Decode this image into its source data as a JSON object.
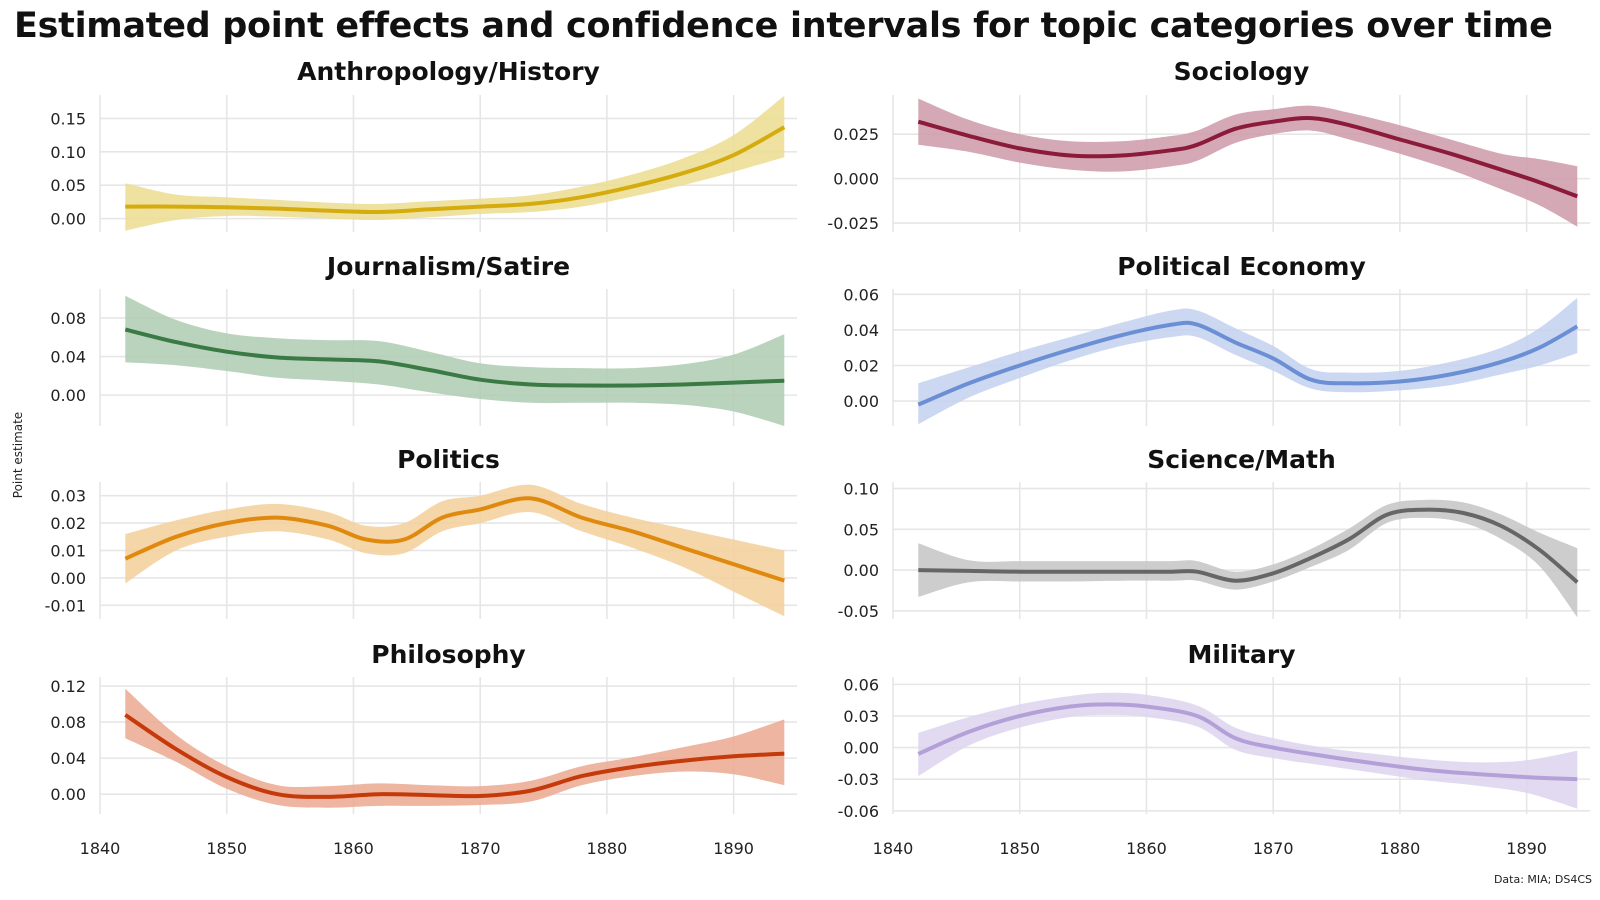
{
  "title": "Estimated point effects and confidence intervals for topic categories over time",
  "ylabel": "Point estimate",
  "caption": "Data: MIA; DS4CS",
  "chart_data": [
    {
      "type": "line",
      "title": "Anthropology/History",
      "color": "#d4ac0d",
      "band_color": "#ecdc8e",
      "ylim": [
        -0.02,
        0.185
      ],
      "yticks": [
        0.0,
        0.05,
        0.1,
        0.15
      ],
      "ytick_labels": [
        "0.00",
        "0.05",
        "0.10",
        "0.15"
      ],
      "xlim": [
        1840,
        1895
      ],
      "xticks": [
        1840,
        1850,
        1860,
        1870,
        1880,
        1890
      ],
      "xtick_labels": [
        "1840",
        "1850",
        "1860",
        "1870",
        "1880",
        "1890"
      ],
      "show_xlabels": false,
      "x": [
        1842,
        1846,
        1850,
        1854,
        1858,
        1862,
        1866,
        1870,
        1874,
        1878,
        1882,
        1886,
        1890,
        1894
      ],
      "y": [
        0.018,
        0.018,
        0.017,
        0.015,
        0.012,
        0.01,
        0.014,
        0.018,
        0.022,
        0.032,
        0.048,
        0.068,
        0.095,
        0.137
      ],
      "lower": [
        -0.018,
        -0.002,
        0.004,
        0.003,
        0.0,
        -0.002,
        0.002,
        0.007,
        0.01,
        0.018,
        0.033,
        0.05,
        0.07,
        0.092
      ],
      "upper": [
        0.053,
        0.036,
        0.032,
        0.028,
        0.024,
        0.022,
        0.026,
        0.03,
        0.035,
        0.048,
        0.066,
        0.09,
        0.125,
        0.184
      ]
    },
    {
      "type": "line",
      "title": "Sociology",
      "color": "#8c1a3a",
      "band_color": "#cc9aa8",
      "ylim": [
        -0.03,
        0.047
      ],
      "yticks": [
        -0.025,
        0.0,
        0.025
      ],
      "ytick_labels": [
        "-0.025",
        "0.000",
        "0.025"
      ],
      "xlim": [
        1840,
        1895
      ],
      "xticks": [
        1840,
        1850,
        1860,
        1870,
        1880,
        1890
      ],
      "xtick_labels": [
        "1840",
        "1850",
        "1860",
        "1870",
        "1880",
        "1890"
      ],
      "show_xlabels": false,
      "x": [
        1842,
        1846,
        1850,
        1854,
        1858,
        1862,
        1864,
        1867,
        1870,
        1873,
        1876,
        1880,
        1884,
        1888,
        1891,
        1894
      ],
      "y": [
        0.032,
        0.024,
        0.017,
        0.013,
        0.013,
        0.016,
        0.019,
        0.028,
        0.032,
        0.034,
        0.03,
        0.022,
        0.014,
        0.005,
        -0.002,
        -0.01
      ],
      "lower": [
        0.019,
        0.015,
        0.009,
        0.005,
        0.004,
        0.007,
        0.01,
        0.02,
        0.025,
        0.027,
        0.022,
        0.014,
        0.005,
        -0.006,
        -0.015,
        -0.027
      ],
      "upper": [
        0.045,
        0.033,
        0.025,
        0.021,
        0.021,
        0.024,
        0.027,
        0.036,
        0.039,
        0.041,
        0.037,
        0.03,
        0.022,
        0.014,
        0.011,
        0.007
      ]
    },
    {
      "type": "line",
      "title": "Journalism/Satire",
      "color": "#3a7a45",
      "band_color": "#aecbb1",
      "ylim": [
        -0.032,
        0.11
      ],
      "yticks": [
        0.0,
        0.04,
        0.08
      ],
      "ytick_labels": [
        "0.00",
        "0.04",
        "0.08"
      ],
      "xlim": [
        1840,
        1895
      ],
      "xticks": [
        1840,
        1850,
        1860,
        1870,
        1880,
        1890
      ],
      "xtick_labels": [
        "1840",
        "1850",
        "1860",
        "1870",
        "1880",
        "1890"
      ],
      "show_xlabels": false,
      "x": [
        1842,
        1846,
        1850,
        1854,
        1858,
        1862,
        1866,
        1870,
        1874,
        1878,
        1882,
        1886,
        1890,
        1894
      ],
      "y": [
        0.068,
        0.055,
        0.045,
        0.039,
        0.037,
        0.035,
        0.026,
        0.016,
        0.011,
        0.01,
        0.01,
        0.011,
        0.013,
        0.015
      ],
      "lower": [
        0.034,
        0.031,
        0.025,
        0.018,
        0.015,
        0.011,
        0.003,
        -0.004,
        -0.008,
        -0.008,
        -0.008,
        -0.01,
        -0.017,
        -0.032
      ],
      "upper": [
        0.103,
        0.078,
        0.064,
        0.059,
        0.057,
        0.056,
        0.045,
        0.033,
        0.029,
        0.028,
        0.028,
        0.032,
        0.042,
        0.063
      ]
    },
    {
      "type": "line",
      "title": "Political Economy",
      "color": "#6a8fd4",
      "band_color": "#c3d1ee",
      "ylim": [
        -0.014,
        0.063
      ],
      "yticks": [
        0.0,
        0.02,
        0.04,
        0.06
      ],
      "ytick_labels": [
        "0.00",
        "0.02",
        "0.04",
        "0.06"
      ],
      "xlim": [
        1840,
        1895
      ],
      "xticks": [
        1840,
        1850,
        1860,
        1870,
        1880,
        1890
      ],
      "xtick_labels": [
        "1840",
        "1850",
        "1860",
        "1870",
        "1880",
        "1890"
      ],
      "show_xlabels": false,
      "x": [
        1842,
        1846,
        1850,
        1854,
        1858,
        1862,
        1864,
        1867,
        1870,
        1873,
        1876,
        1880,
        1884,
        1888,
        1891,
        1894
      ],
      "y": [
        -0.002,
        0.01,
        0.02,
        0.029,
        0.037,
        0.043,
        0.043,
        0.033,
        0.024,
        0.012,
        0.01,
        0.011,
        0.015,
        0.022,
        0.03,
        0.042
      ],
      "lower": [
        -0.013,
        0.002,
        0.013,
        0.023,
        0.031,
        0.036,
        0.036,
        0.026,
        0.017,
        0.007,
        0.005,
        0.006,
        0.009,
        0.015,
        0.02,
        0.027
      ],
      "upper": [
        0.01,
        0.019,
        0.028,
        0.036,
        0.044,
        0.051,
        0.051,
        0.041,
        0.031,
        0.018,
        0.016,
        0.017,
        0.022,
        0.03,
        0.041,
        0.058
      ]
    },
    {
      "type": "line",
      "title": "Politics",
      "color": "#e0890f",
      "band_color": "#f3cf9a",
      "ylim": [
        -0.015,
        0.035
      ],
      "yticks": [
        -0.01,
        0.0,
        0.01,
        0.02,
        0.03
      ],
      "ytick_labels": [
        "-0.01",
        "0.00",
        "0.01",
        "0.02",
        "0.03"
      ],
      "xlim": [
        1840,
        1895
      ],
      "xticks": [
        1840,
        1850,
        1860,
        1870,
        1880,
        1890
      ],
      "xtick_labels": [
        "1840",
        "1850",
        "1860",
        "1870",
        "1880",
        "1890"
      ],
      "show_xlabels": false,
      "x": [
        1842,
        1846,
        1850,
        1854,
        1858,
        1861,
        1864,
        1867,
        1870,
        1874,
        1878,
        1882,
        1886,
        1890,
        1894
      ],
      "y": [
        0.007,
        0.015,
        0.02,
        0.022,
        0.019,
        0.014,
        0.014,
        0.022,
        0.025,
        0.029,
        0.022,
        0.017,
        0.011,
        0.005,
        -0.001
      ],
      "lower": [
        -0.002,
        0.01,
        0.015,
        0.017,
        0.014,
        0.009,
        0.009,
        0.017,
        0.02,
        0.024,
        0.017,
        0.011,
        0.004,
        -0.005,
        -0.014
      ],
      "upper": [
        0.016,
        0.021,
        0.025,
        0.027,
        0.024,
        0.019,
        0.02,
        0.028,
        0.03,
        0.034,
        0.027,
        0.022,
        0.018,
        0.014,
        0.01
      ]
    },
    {
      "type": "line",
      "title": "Science/Math",
      "color": "#666666",
      "band_color": "#c4c4c4",
      "ylim": [
        -0.06,
        0.108
      ],
      "yticks": [
        -0.05,
        0.0,
        0.05,
        0.1
      ],
      "ytick_labels": [
        "-0.05",
        "0.00",
        "0.05",
        "0.10"
      ],
      "xlim": [
        1840,
        1895
      ],
      "xticks": [
        1840,
        1850,
        1860,
        1870,
        1880,
        1890
      ],
      "xtick_labels": [
        "1840",
        "1850",
        "1860",
        "1870",
        "1880",
        "1890"
      ],
      "show_xlabels": false,
      "x": [
        1842,
        1846,
        1850,
        1854,
        1858,
        1862,
        1864,
        1867,
        1870,
        1873,
        1876,
        1879,
        1882,
        1885,
        1888,
        1891,
        1894
      ],
      "y": [
        0.0,
        -0.001,
        -0.002,
        -0.002,
        -0.002,
        -0.002,
        -0.002,
        -0.013,
        -0.004,
        0.015,
        0.038,
        0.068,
        0.074,
        0.07,
        0.054,
        0.025,
        -0.015
      ],
      "lower": [
        -0.033,
        -0.015,
        -0.014,
        -0.014,
        -0.013,
        -0.013,
        -0.013,
        -0.024,
        -0.014,
        0.004,
        0.025,
        0.058,
        0.064,
        0.058,
        0.038,
        0.005,
        -0.058
      ],
      "upper": [
        0.033,
        0.012,
        0.011,
        0.011,
        0.011,
        0.011,
        0.011,
        -0.002,
        0.007,
        0.026,
        0.051,
        0.08,
        0.086,
        0.083,
        0.068,
        0.046,
        0.027
      ]
    },
    {
      "type": "line",
      "title": "Philosophy",
      "color": "#c43a0a",
      "band_color": "#eba88f",
      "ylim": [
        -0.022,
        0.13
      ],
      "yticks": [
        0.0,
        0.04,
        0.08,
        0.12
      ],
      "ytick_labels": [
        "0.00",
        "0.04",
        "0.08",
        "0.12"
      ],
      "xlim": [
        1840,
        1895
      ],
      "xticks": [
        1840,
        1850,
        1860,
        1870,
        1880,
        1890
      ],
      "xtick_labels": [
        "1840",
        "1850",
        "1860",
        "1870",
        "1880",
        "1890"
      ],
      "show_xlabels": true,
      "x": [
        1842,
        1846,
        1850,
        1854,
        1858,
        1862,
        1866,
        1870,
        1874,
        1878,
        1882,
        1886,
        1890,
        1894
      ],
      "y": [
        0.088,
        0.05,
        0.019,
        0.0,
        -0.003,
        0.0,
        -0.001,
        -0.002,
        0.004,
        0.02,
        0.03,
        0.037,
        0.042,
        0.045
      ],
      "lower": [
        0.062,
        0.036,
        0.006,
        -0.012,
        -0.015,
        -0.013,
        -0.013,
        -0.012,
        -0.008,
        0.01,
        0.02,
        0.025,
        0.022,
        0.01
      ],
      "upper": [
        0.117,
        0.066,
        0.031,
        0.01,
        0.009,
        0.012,
        0.01,
        0.009,
        0.015,
        0.031,
        0.041,
        0.052,
        0.064,
        0.083
      ]
    },
    {
      "type": "line",
      "title": "Military",
      "color": "#b4a0d8",
      "band_color": "#ddd3ed",
      "ylim": [
        -0.063,
        0.067
      ],
      "yticks": [
        -0.06,
        -0.03,
        0.0,
        0.03,
        0.06
      ],
      "ytick_labels": [
        "-0.06",
        "-0.03",
        "0.00",
        "0.03",
        "0.06"
      ],
      "xlim": [
        1840,
        1895
      ],
      "xticks": [
        1840,
        1850,
        1860,
        1870,
        1880,
        1890
      ],
      "xtick_labels": [
        "1840",
        "1850",
        "1860",
        "1870",
        "1880",
        "1890"
      ],
      "show_xlabels": true,
      "x": [
        1842,
        1846,
        1850,
        1854,
        1857,
        1860,
        1864,
        1867,
        1870,
        1874,
        1878,
        1882,
        1886,
        1890,
        1894
      ],
      "y": [
        -0.006,
        0.015,
        0.03,
        0.039,
        0.041,
        0.039,
        0.03,
        0.009,
        0.0,
        -0.008,
        -0.015,
        -0.021,
        -0.025,
        -0.028,
        -0.03
      ],
      "lower": [
        -0.027,
        0.002,
        0.019,
        0.029,
        0.031,
        0.029,
        0.02,
        -0.002,
        -0.01,
        -0.017,
        -0.024,
        -0.031,
        -0.036,
        -0.043,
        -0.058
      ],
      "upper": [
        0.014,
        0.029,
        0.041,
        0.049,
        0.052,
        0.05,
        0.04,
        0.019,
        0.009,
        0.0,
        -0.006,
        -0.011,
        -0.014,
        -0.012,
        -0.003
      ]
    }
  ]
}
